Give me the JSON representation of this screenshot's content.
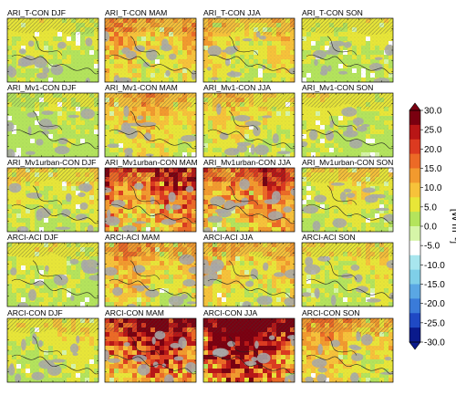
{
  "chart_data": {
    "type": "heatmap",
    "rows": [
      "ARI_T-CON",
      "ARI_Mv1-CON",
      "ARI_Mv1urban-CON",
      "ARCI-ACI",
      "ARCI-CON"
    ],
    "seasons": [
      "DJF",
      "MAM",
      "JJA",
      "SON"
    ],
    "panels": [
      {
        "title": "ARI_T-CON  DJF",
        "mean": 4
      },
      {
        "title": "ARI_T-CON  MAM",
        "mean": 9
      },
      {
        "title": "ARI_T-CON  JJA",
        "mean": 7
      },
      {
        "title": "ARI_T-CON  SON",
        "mean": 4
      },
      {
        "title": "ARI_Mv1-CON  DJF",
        "mean": 3
      },
      {
        "title": "ARI_Mv1-CON  MAM",
        "mean": 8
      },
      {
        "title": "ARI_Mv1-CON  JJA",
        "mean": 6
      },
      {
        "title": "ARI_Mv1-CON  SON",
        "mean": 4
      },
      {
        "title": "ARI_Mv1urban-CON  DJF",
        "mean": 5
      },
      {
        "title": "ARI_Mv1urban-CON  MAM",
        "mean": 16
      },
      {
        "title": "ARI_Mv1urban-CON  JJA",
        "mean": 14
      },
      {
        "title": "ARI_Mv1urban-CON  SON",
        "mean": 5
      },
      {
        "title": "ARCI-ACI  DJF",
        "mean": 4
      },
      {
        "title": "ARCI-ACI  MAM",
        "mean": 9
      },
      {
        "title": "ARCI-ACI  JJA",
        "mean": 8
      },
      {
        "title": "ARCI-ACI  SON",
        "mean": 5
      },
      {
        "title": "ARCI-CON  DJF",
        "mean": 5
      },
      {
        "title": "ARCI-CON  MAM",
        "mean": 20
      },
      {
        "title": "ARCI-CON  JJA",
        "mean": 24
      },
      {
        "title": "ARCI-CON  SON",
        "mean": 9
      }
    ],
    "colorbar": {
      "ticks": [
        "30.0",
        "25.0",
        "20.0",
        "15.0",
        "10.0",
        "5.0",
        "0.0",
        "-5.0",
        "-10.0",
        "-15.0",
        "-20.0",
        "-25.0",
        "-30.0"
      ],
      "range": [
        -30,
        30
      ],
      "unit": "[W m⁻²]",
      "colors": [
        "#0a1a8c",
        "#1f49c4",
        "#3a7bd9",
        "#5aa7e4",
        "#7fcfe8",
        "#a8e6ee",
        "#ffffff",
        "#d6f5a8",
        "#b4e45c",
        "#e8e638",
        "#f7c23a",
        "#f29a2e",
        "#ec6a26",
        "#dc3a20",
        "#b81616",
        "#7a0010"
      ]
    },
    "legend_position": "right"
  }
}
